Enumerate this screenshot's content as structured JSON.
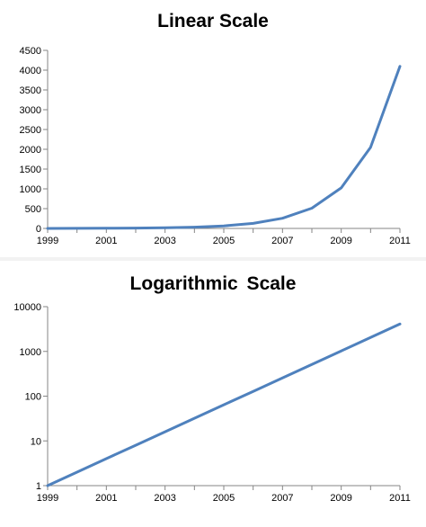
{
  "chart_data": [
    {
      "type": "line",
      "title": "Linear Scale",
      "x": [
        1999,
        2000,
        2001,
        2002,
        2003,
        2004,
        2005,
        2006,
        2007,
        2008,
        2009,
        2010,
        2011
      ],
      "series": [
        {
          "values": [
            1,
            2,
            4,
            8,
            16,
            32,
            64,
            128,
            256,
            512,
            1024,
            2048,
            4096
          ]
        }
      ],
      "xticks": [
        "1999",
        "2001",
        "2003",
        "2005",
        "2007",
        "2009",
        "2011"
      ],
      "yticks": [
        "0",
        "500",
        "1000",
        "1500",
        "2000",
        "2500",
        "3000",
        "3500",
        "4000",
        "4500"
      ],
      "xlim": [
        1999,
        2011
      ],
      "ylim": [
        0,
        4500
      ],
      "yscale": "linear",
      "grid": false,
      "line_color": "#4f81bd"
    },
    {
      "type": "line",
      "title": "Logarithmic  Scale",
      "x": [
        1999,
        2000,
        2001,
        2002,
        2003,
        2004,
        2005,
        2006,
        2007,
        2008,
        2009,
        2010,
        2011
      ],
      "series": [
        {
          "values": [
            1,
            2,
            4,
            8,
            16,
            32,
            64,
            128,
            256,
            512,
            1024,
            2048,
            4096
          ]
        }
      ],
      "xticks": [
        "1999",
        "2001",
        "2003",
        "2005",
        "2007",
        "2009",
        "2011"
      ],
      "yticks": [
        "1",
        "10",
        "100",
        "1000",
        "10000"
      ],
      "xlim": [
        1999,
        2011
      ],
      "ylim": [
        1,
        10000
      ],
      "yscale": "log",
      "grid": false,
      "line_color": "#4f81bd"
    }
  ]
}
